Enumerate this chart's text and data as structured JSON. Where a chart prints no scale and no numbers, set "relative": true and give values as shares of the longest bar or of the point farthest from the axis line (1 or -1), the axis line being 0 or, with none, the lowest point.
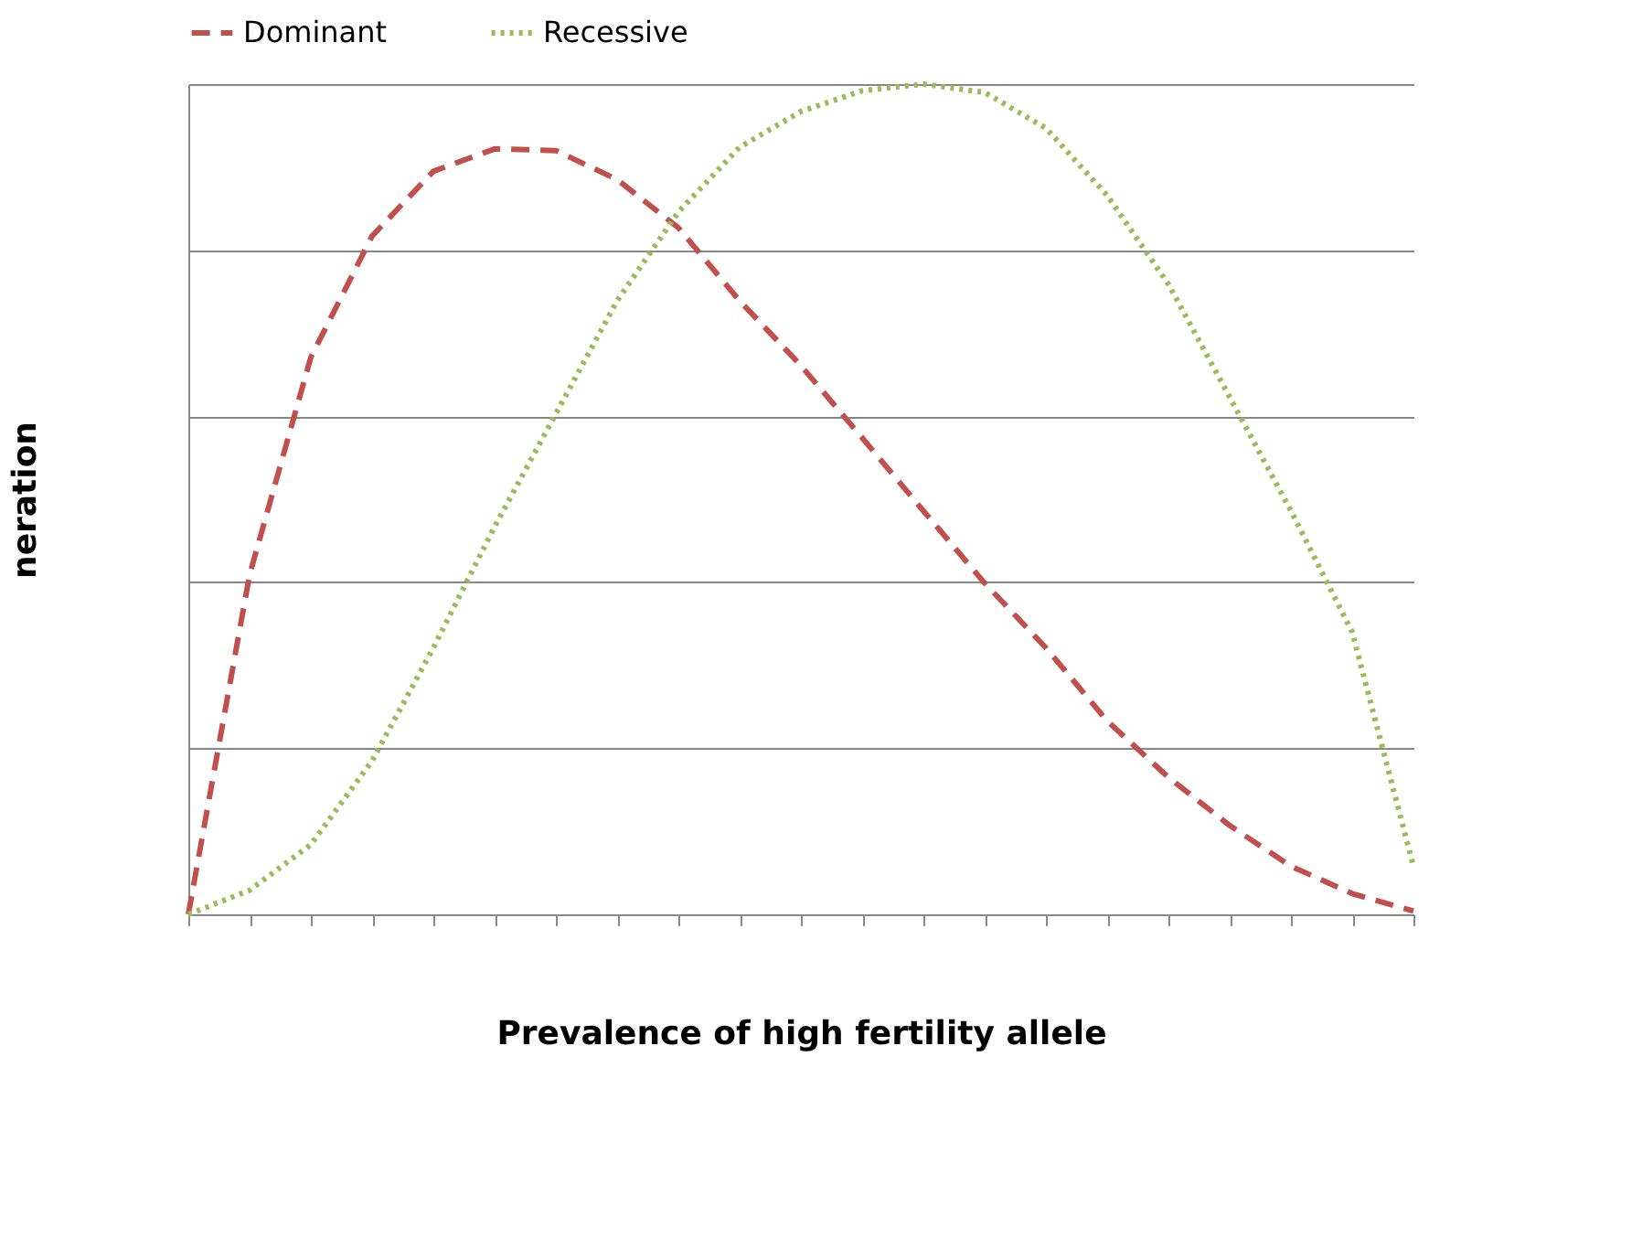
{
  "chart_data": {
    "type": "line",
    "xlabel": "Prevalence of high fertility allele",
    "ylabel": "neration",
    "relative": true,
    "grid": "y",
    "legend": "top",
    "marker": "none",
    "categories": [
      null,
      null,
      null,
      null,
      null,
      null,
      null,
      null,
      null,
      null,
      null,
      null,
      null,
      null,
      null,
      null,
      null,
      null,
      null,
      null,
      null
    ],
    "series": [
      {
        "name": "Dominant",
        "color": "#c0504d",
        "line_style": "dashed",
        "values": [
          0,
          0.409,
          0.671,
          0.817,
          0.895,
          0.922,
          0.92,
          0.885,
          0.827,
          0.739,
          0.661,
          0.574,
          0.486,
          0.399,
          0.321,
          0.233,
          0.165,
          0.107,
          0.058,
          0.025,
          0.004
        ]
      },
      {
        "name": "Recessive",
        "color": "#9bbb59",
        "line_style": "dotted",
        "values": [
          0,
          0.029,
          0.084,
          0.185,
          0.321,
          0.467,
          0.603,
          0.739,
          0.846,
          0.924,
          0.967,
          0.992,
          1.0,
          0.99,
          0.947,
          0.866,
          0.759,
          0.623,
          0.486,
          0.34,
          0.058
        ]
      }
    ]
  }
}
